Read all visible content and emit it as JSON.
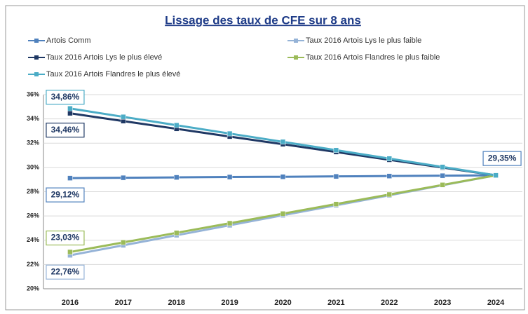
{
  "chart_data": {
    "type": "line",
    "title": "Lissage des taux de CFE sur 8 ans",
    "categories": [
      "2016",
      "2017",
      "2018",
      "2019",
      "2020",
      "2021",
      "2022",
      "2023",
      "2024"
    ],
    "series": [
      {
        "name": "Artois Comm",
        "color": "#4f81bd",
        "values": [
          29.12,
          29.15,
          29.18,
          29.21,
          29.23,
          29.26,
          29.29,
          29.32,
          29.35
        ],
        "value_labels": [
          "29,12%",
          null,
          null,
          null,
          null,
          null,
          null,
          null,
          "29,35%"
        ]
      },
      {
        "name": "Taux 2016 Artois Lys le plus faible",
        "color": "#95b3d7",
        "values": [
          22.76,
          23.58,
          24.41,
          25.23,
          26.06,
          26.88,
          27.7,
          28.53,
          29.35
        ],
        "value_labels": [
          "22,76%",
          null,
          null,
          null,
          null,
          null,
          null,
          null,
          null
        ]
      },
      {
        "name": "Taux 2016 Artois Lys le plus élevé",
        "color": "#1f3864",
        "values": [
          34.46,
          33.82,
          33.18,
          32.54,
          31.91,
          31.27,
          30.63,
          29.99,
          29.35
        ],
        "value_labels": [
          "34,46%",
          null,
          null,
          null,
          null,
          null,
          null,
          null,
          null
        ]
      },
      {
        "name": "Taux 2016 Artois Flandres le plus faible",
        "color": "#9bbb59",
        "values": [
          23.03,
          23.82,
          24.61,
          25.4,
          26.19,
          26.98,
          27.77,
          28.56,
          29.35
        ],
        "value_labels": [
          "23,03%",
          null,
          null,
          null,
          null,
          null,
          null,
          null,
          null
        ]
      },
      {
        "name": "Taux 2016 Artois Flandres le plus élevé",
        "color": "#4bacc6",
        "values": [
          34.86,
          34.17,
          33.48,
          32.79,
          32.11,
          31.42,
          30.73,
          30.04,
          29.35
        ],
        "value_labels": [
          "34,86%",
          null,
          null,
          null,
          null,
          null,
          null,
          null,
          null
        ]
      }
    ],
    "ylim": [
      20,
      36
    ],
    "yticks": [
      {
        "value": 20,
        "label": "20%"
      },
      {
        "value": 22,
        "label": "22%"
      },
      {
        "value": 24,
        "label": "24%"
      },
      {
        "value": 26,
        "label": "26%"
      },
      {
        "value": 28,
        "label": "28%"
      },
      {
        "value": 30,
        "label": "30%"
      },
      {
        "value": 32,
        "label": "32%"
      },
      {
        "value": 34,
        "label": "34%"
      },
      {
        "value": 36,
        "label": "36%"
      }
    ],
    "grid": true
  }
}
